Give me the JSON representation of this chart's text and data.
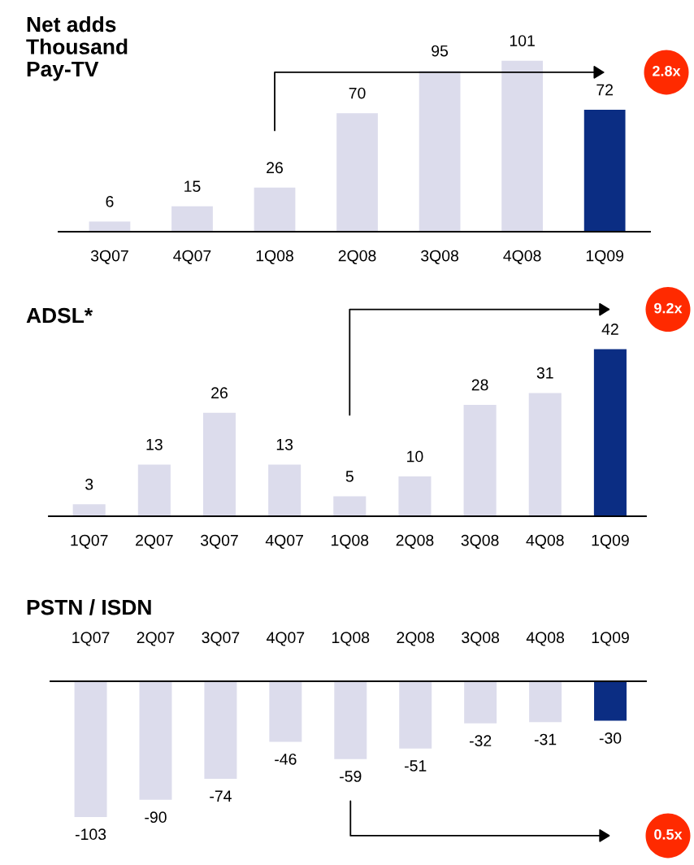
{
  "chart_data": [
    {
      "type": "bar",
      "title": "Net adds\nThousand\nPay-TV",
      "categories": [
        "3Q07",
        "4Q07",
        "1Q08",
        "2Q08",
        "3Q08",
        "4Q08",
        "1Q09"
      ],
      "values": [
        6,
        15,
        26,
        70,
        95,
        101,
        72
      ],
      "colors": [
        "#dcdcec",
        "#dcdcec",
        "#dcdcec",
        "#dcdcec",
        "#dcdcec",
        "#dcdcec",
        "#0b2d83"
      ],
      "data_labels": true,
      "annotations": [
        "2.8x"
      ]
    },
    {
      "type": "bar",
      "title": "ADSL*",
      "categories": [
        "1Q07",
        "2Q07",
        "3Q07",
        "4Q07",
        "1Q08",
        "2Q08",
        "3Q08",
        "4Q08",
        "1Q09"
      ],
      "values": [
        3,
        13,
        26,
        13,
        5,
        10,
        28,
        31,
        42
      ],
      "colors": [
        "#dcdcec",
        "#dcdcec",
        "#dcdcec",
        "#dcdcec",
        "#dcdcec",
        "#dcdcec",
        "#dcdcec",
        "#dcdcec",
        "#0b2d83"
      ],
      "data_labels": true,
      "annotations": [
        "9.2x"
      ]
    },
    {
      "type": "bar",
      "title": "PSTN / ISDN",
      "categories": [
        "1Q07",
        "2Q07",
        "3Q07",
        "4Q07",
        "1Q08",
        "2Q08",
        "3Q08",
        "4Q08",
        "1Q09"
      ],
      "values": [
        -103,
        -90,
        -74,
        -46,
        -59,
        -51,
        -32,
        -31,
        -30
      ],
      "colors": [
        "#dcdcec",
        "#dcdcec",
        "#dcdcec",
        "#dcdcec",
        "#dcdcec",
        "#dcdcec",
        "#dcdcec",
        "#dcdcec",
        "#0b2d83"
      ],
      "data_labels": true,
      "annotations": [
        "0.5x"
      ]
    }
  ]
}
